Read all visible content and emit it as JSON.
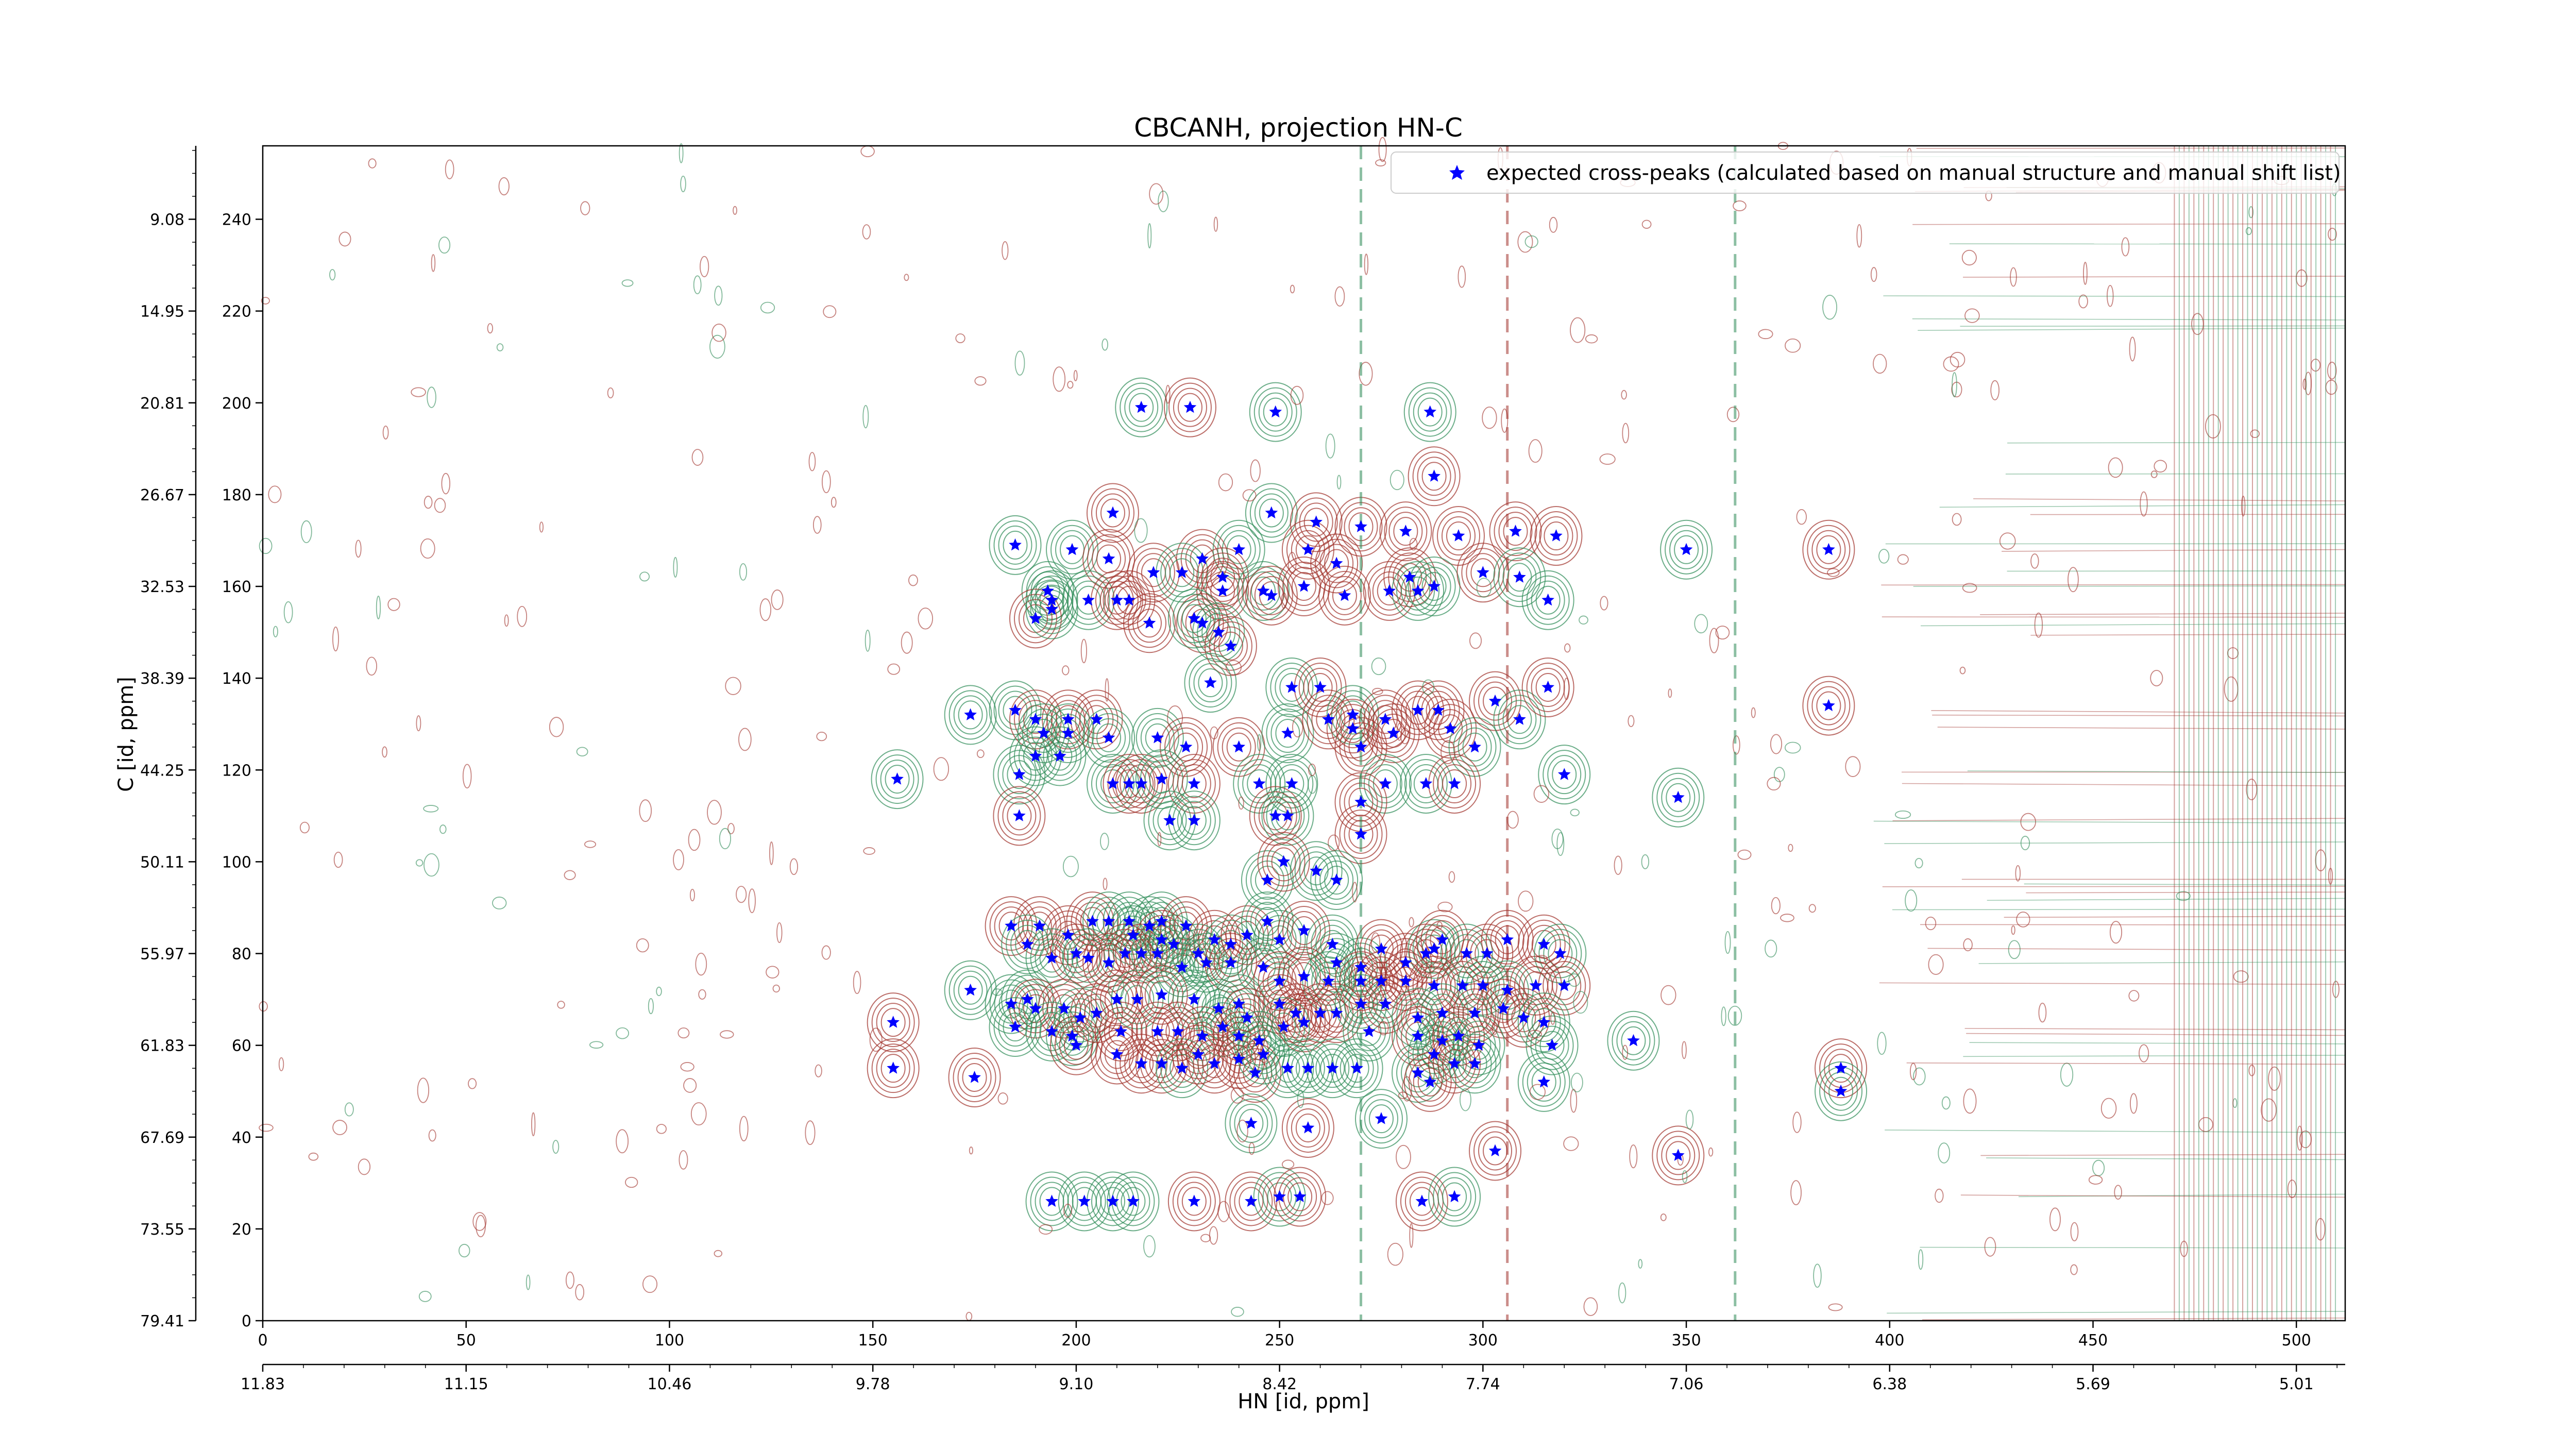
{
  "chart_data": {
    "type": "scatter",
    "title": "CBCANH, projection HN-C",
    "xlabel": "HN [id, ppm]",
    "ylabel": "C [id, ppm]",
    "xlim": [
      0,
      512
    ],
    "ylim": [
      0,
      256
    ],
    "x_ticks": [
      0,
      50,
      100,
      150,
      200,
      250,
      300,
      350,
      400,
      450,
      500
    ],
    "y_ticks": [
      0,
      20,
      40,
      60,
      80,
      100,
      120,
      140,
      160,
      180,
      200,
      220,
      240
    ],
    "x_ppm_ticks": [
      {
        "pos": 0,
        "label": "11.83"
      },
      {
        "pos": 50,
        "label": "11.15"
      },
      {
        "pos": 100,
        "label": "10.46"
      },
      {
        "pos": 150,
        "label": "9.78"
      },
      {
        "pos": 200,
        "label": "9.10"
      },
      {
        "pos": 250,
        "label": "8.42"
      },
      {
        "pos": 300,
        "label": "7.74"
      },
      {
        "pos": 350,
        "label": "7.06"
      },
      {
        "pos": 400,
        "label": "6.38"
      },
      {
        "pos": 450,
        "label": "5.69"
      },
      {
        "pos": 500,
        "label": "5.01"
      }
    ],
    "y_ppm_ticks": [
      {
        "pos": 0,
        "label": "79.41"
      },
      {
        "pos": 20,
        "label": "73.55"
      },
      {
        "pos": 40,
        "label": "67.69"
      },
      {
        "pos": 60,
        "label": "61.83"
      },
      {
        "pos": 80,
        "label": "55.97"
      },
      {
        "pos": 100,
        "label": "50.11"
      },
      {
        "pos": 120,
        "label": "44.25"
      },
      {
        "pos": 140,
        "label": "38.39"
      },
      {
        "pos": 160,
        "label": "32.53"
      },
      {
        "pos": 180,
        "label": "26.67"
      },
      {
        "pos": 200,
        "label": "20.81"
      },
      {
        "pos": 220,
        "label": "14.95"
      },
      {
        "pos": 240,
        "label": "9.08"
      }
    ],
    "legend": {
      "label": "expected cross-peaks (calculated based on manual structure and manual shift list)",
      "placement": "top-right"
    },
    "colors": {
      "marker": "#0000ff",
      "positive_contour": "#2e8b57",
      "negative_contour": "#a0302a",
      "axis": "#000000"
    },
    "series": [
      {
        "name": "expected cross-peaks (calculated based on manual structure and manual shift list)",
        "points": [
          [
            216,
            199
          ],
          [
            228,
            199
          ],
          [
            249,
            198
          ],
          [
            287,
            198
          ],
          [
            288,
            184
          ],
          [
            209,
            176
          ],
          [
            248,
            176
          ],
          [
            259,
            174
          ],
          [
            270,
            173
          ],
          [
            281,
            172
          ],
          [
            294,
            171
          ],
          [
            308,
            172
          ],
          [
            318,
            171
          ],
          [
            185,
            169
          ],
          [
            199,
            168
          ],
          [
            208,
            166
          ],
          [
            231,
            166
          ],
          [
            240,
            168
          ],
          [
            219,
            163
          ],
          [
            226,
            163
          ],
          [
            236,
            162
          ],
          [
            236,
            159
          ],
          [
            246,
            159
          ],
          [
            248,
            158
          ],
          [
            256,
            160
          ],
          [
            257,
            168
          ],
          [
            264,
            165
          ],
          [
            266,
            158
          ],
          [
            277,
            159
          ],
          [
            282,
            162
          ],
          [
            284,
            159
          ],
          [
            288,
            160
          ],
          [
            300,
            163
          ],
          [
            309,
            162
          ],
          [
            316,
            157
          ],
          [
            193,
            159
          ],
          [
            194,
            157
          ],
          [
            203,
            157
          ],
          [
            210,
            157
          ],
          [
            213,
            157
          ],
          [
            218,
            152
          ],
          [
            231,
            152
          ],
          [
            229,
            153
          ],
          [
            235,
            150
          ],
          [
            238,
            147
          ],
          [
            190,
            153
          ],
          [
            194,
            155
          ],
          [
            253,
            138
          ],
          [
            260,
            138
          ],
          [
            233,
            139
          ],
          [
            174,
            132
          ],
          [
            185,
            133
          ],
          [
            190,
            131
          ],
          [
            198,
            131
          ],
          [
            205,
            131
          ],
          [
            192,
            128
          ],
          [
            198,
            128
          ],
          [
            196,
            123
          ],
          [
            208,
            127
          ],
          [
            190,
            123
          ],
          [
            220,
            127
          ],
          [
            227,
            125
          ],
          [
            240,
            125
          ],
          [
            252,
            128
          ],
          [
            262,
            131
          ],
          [
            268,
            132
          ],
          [
            268,
            129
          ],
          [
            270,
            125
          ],
          [
            276,
            131
          ],
          [
            278,
            128
          ],
          [
            284,
            133
          ],
          [
            289,
            133
          ],
          [
            292,
            129
          ],
          [
            298,
            125
          ],
          [
            303,
            135
          ],
          [
            309,
            131
          ],
          [
            316,
            138
          ],
          [
            186,
            119
          ],
          [
            156,
            118
          ],
          [
            209,
            117
          ],
          [
            213,
            117
          ],
          [
            216,
            117
          ],
          [
            221,
            118
          ],
          [
            229,
            117
          ],
          [
            245,
            117
          ],
          [
            253,
            117
          ],
          [
            276,
            117
          ],
          [
            286,
            117
          ],
          [
            293,
            117
          ],
          [
            320,
            119
          ],
          [
            186,
            110
          ],
          [
            223,
            109
          ],
          [
            229,
            109
          ],
          [
            249,
            110
          ],
          [
            252,
            110
          ],
          [
            270,
            113
          ],
          [
            270,
            106
          ],
          [
            184,
            86
          ],
          [
            191,
            86
          ],
          [
            198,
            84
          ],
          [
            204,
            87
          ],
          [
            208,
            87
          ],
          [
            213,
            87
          ],
          [
            214,
            84
          ],
          [
            218,
            86
          ],
          [
            221,
            87
          ],
          [
            221,
            83
          ],
          [
            224,
            82
          ],
          [
            227,
            86
          ],
          [
            230,
            80
          ],
          [
            234,
            83
          ],
          [
            238,
            82
          ],
          [
            242,
            84
          ],
          [
            247,
            87
          ],
          [
            250,
            83
          ],
          [
            256,
            85
          ],
          [
            263,
            82
          ],
          [
            264,
            78
          ],
          [
            270,
            77
          ],
          [
            275,
            81
          ],
          [
            281,
            78
          ],
          [
            286,
            80
          ],
          [
            288,
            81
          ],
          [
            290,
            83
          ],
          [
            296,
            80
          ],
          [
            301,
            80
          ],
          [
            306,
            83
          ],
          [
            315,
            82
          ],
          [
            319,
            80
          ],
          [
            188,
            82
          ],
          [
            194,
            79
          ],
          [
            200,
            80
          ],
          [
            203,
            79
          ],
          [
            208,
            78
          ],
          [
            212,
            80
          ],
          [
            216,
            80
          ],
          [
            220,
            80
          ],
          [
            226,
            77
          ],
          [
            232,
            78
          ],
          [
            238,
            78
          ],
          [
            246,
            77
          ],
          [
            250,
            74
          ],
          [
            256,
            75
          ],
          [
            262,
            74
          ],
          [
            270,
            74
          ],
          [
            275,
            74
          ],
          [
            281,
            74
          ],
          [
            288,
            73
          ],
          [
            295,
            73
          ],
          [
            300,
            73
          ],
          [
            306,
            72
          ],
          [
            313,
            73
          ],
          [
            320,
            73
          ],
          [
            174,
            72
          ],
          [
            184,
            69
          ],
          [
            188,
            70
          ],
          [
            190,
            68
          ],
          [
            197,
            68
          ],
          [
            201,
            66
          ],
          [
            205,
            67
          ],
          [
            210,
            70
          ],
          [
            215,
            70
          ],
          [
            221,
            71
          ],
          [
            229,
            70
          ],
          [
            235,
            68
          ],
          [
            240,
            69
          ],
          [
            242,
            66
          ],
          [
            250,
            69
          ],
          [
            254,
            67
          ],
          [
            260,
            67
          ],
          [
            264,
            67
          ],
          [
            270,
            69
          ],
          [
            276,
            69
          ],
          [
            284,
            66
          ],
          [
            290,
            67
          ],
          [
            298,
            67
          ],
          [
            305,
            68
          ],
          [
            310,
            66
          ],
          [
            315,
            65
          ],
          [
            185,
            64
          ],
          [
            194,
            63
          ],
          [
            199,
            62
          ],
          [
            200,
            60
          ],
          [
            211,
            63
          ],
          [
            220,
            63
          ],
          [
            225,
            63
          ],
          [
            231,
            62
          ],
          [
            236,
            64
          ],
          [
            240,
            62
          ],
          [
            245,
            61
          ],
          [
            251,
            64
          ],
          [
            256,
            65
          ],
          [
            272,
            63
          ],
          [
            284,
            62
          ],
          [
            288,
            58
          ],
          [
            290,
            61
          ],
          [
            294,
            62
          ],
          [
            299,
            60
          ],
          [
            317,
            60
          ],
          [
            155,
            65
          ],
          [
            155,
            55
          ],
          [
            175,
            53
          ],
          [
            210,
            58
          ],
          [
            216,
            56
          ],
          [
            221,
            56
          ],
          [
            226,
            55
          ],
          [
            230,
            58
          ],
          [
            234,
            56
          ],
          [
            240,
            57
          ],
          [
            244,
            54
          ],
          [
            246,
            58
          ],
          [
            252,
            55
          ],
          [
            257,
            55
          ],
          [
            263,
            55
          ],
          [
            269,
            55
          ],
          [
            284,
            54
          ],
          [
            287,
            52
          ],
          [
            293,
            56
          ],
          [
            298,
            56
          ],
          [
            315,
            52
          ],
          [
            337,
            61
          ],
          [
            388,
            55
          ],
          [
            388,
            50
          ],
          [
            243,
            43
          ],
          [
            257,
            42
          ],
          [
            275,
            44
          ],
          [
            303,
            37
          ],
          [
            348,
            36
          ],
          [
            194,
            26
          ],
          [
            202,
            26
          ],
          [
            209,
            26
          ],
          [
            214,
            26
          ],
          [
            229,
            26
          ],
          [
            243,
            26
          ],
          [
            250,
            27
          ],
          [
            255,
            27
          ],
          [
            285,
            26
          ],
          [
            293,
            27
          ],
          [
            247,
            96
          ],
          [
            251,
            100
          ],
          [
            259,
            98
          ],
          [
            264,
            96
          ],
          [
            350,
            168
          ],
          [
            385,
            168
          ],
          [
            385,
            134
          ],
          [
            348,
            114
          ]
        ]
      }
    ]
  }
}
